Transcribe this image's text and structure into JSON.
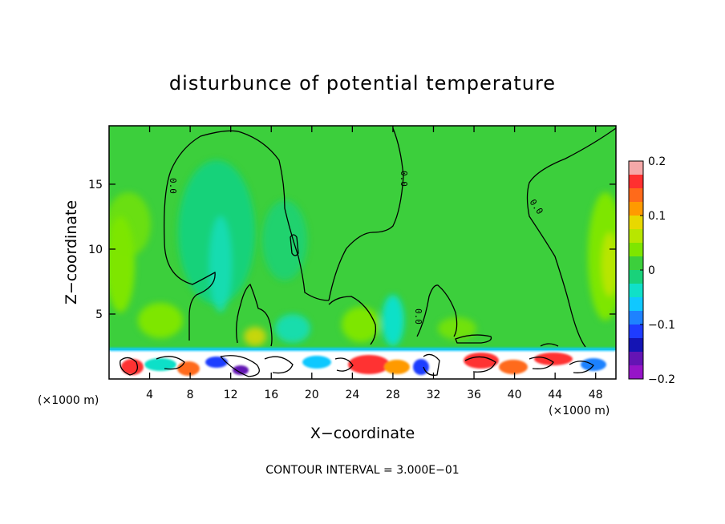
{
  "chart_data": {
    "type": "heatmap",
    "title": "disturbunce of potential temperature",
    "xlabel": "X−coordinate",
    "ylabel": "Z−coordinate",
    "x_unit_label": "(×1000 m)",
    "x_unit_label_right": "(×1000 m)",
    "xlim": [
      0,
      50
    ],
    "ylim": [
      0,
      19.5
    ],
    "x_ticks": [
      4,
      8,
      12,
      16,
      20,
      24,
      28,
      32,
      36,
      40,
      44,
      48
    ],
    "x_tick_labels": [
      "4",
      "8",
      "12",
      "16",
      "20",
      "24",
      "28",
      "32",
      "36",
      "40",
      "44",
      "48"
    ],
    "y_ticks": [
      5,
      10,
      15
    ],
    "y_tick_labels": [
      "5",
      "10",
      "15"
    ],
    "colorbar": {
      "range": [
        -0.2,
        0.2
      ],
      "ticks": [
        0.2,
        0.1,
        0,
        -0.1,
        -0.2
      ],
      "tick_labels": [
        "0.2",
        "0.1",
        "0",
        "−0.1",
        "−0.2"
      ],
      "colors": [
        "#f5a8a8",
        "#ff3030",
        "#ff6a1a",
        "#ff9a00",
        "#e8d800",
        "#b8e600",
        "#7ee600",
        "#3ccf3c",
        "#19d27a",
        "#10e0c8",
        "#10c8ff",
        "#1e82ff",
        "#1e3cff",
        "#1414b4",
        "#6414b4",
        "#9614c8"
      ]
    },
    "contour_interval_label": "CONTOUR INTERVAL = 3.000E−01",
    "contour_labels": [
      "0.0",
      "0.0",
      "0.0",
      "0.0"
    ]
  }
}
